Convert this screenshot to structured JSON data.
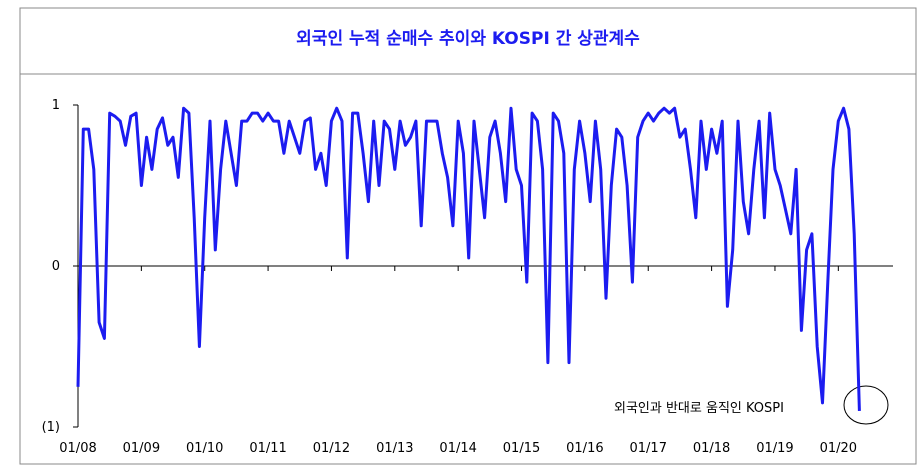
{
  "chart_data": {
    "type": "line",
    "title": "외국인 누적 순매수 추이와 KOSPI 간 상관계수",
    "annotation": "외국인과 반대로 움직인 KOSPI",
    "color": "#1c1cf0",
    "categories": [
      "01/08",
      null,
      null,
      null,
      null,
      null,
      null,
      null,
      null,
      null,
      null,
      null,
      "01/09",
      null,
      null,
      null,
      null,
      null,
      null,
      null,
      null,
      null,
      null,
      null,
      "01/10",
      null,
      null,
      null,
      null,
      null,
      null,
      null,
      null,
      null,
      null,
      null,
      "01/11",
      null,
      null,
      null,
      null,
      null,
      null,
      null,
      null,
      null,
      null,
      null,
      "01/12",
      null,
      null,
      null,
      null,
      null,
      null,
      null,
      null,
      null,
      null,
      null,
      "01/13",
      null,
      null,
      null,
      null,
      null,
      null,
      null,
      null,
      null,
      null,
      null,
      "01/14",
      null,
      null,
      null,
      null,
      null,
      null,
      null,
      null,
      null,
      null,
      null,
      "01/15",
      null,
      null,
      null,
      null,
      null,
      null,
      null,
      null,
      null,
      null,
      null,
      "01/16",
      null,
      null,
      null,
      null,
      null,
      null,
      null,
      null,
      null,
      null,
      null,
      "01/17",
      null,
      null,
      null,
      null,
      null,
      null,
      null,
      null,
      null,
      null,
      null,
      "01/18",
      null,
      null,
      null,
      null,
      null,
      null,
      null,
      null,
      null,
      null,
      null,
      "01/19",
      null,
      null,
      null,
      null,
      null,
      null,
      null,
      null,
      null,
      null,
      null,
      "01/20",
      null,
      null,
      null,
      null
    ],
    "values": [
      -0.75,
      0.85,
      0.85,
      0.6,
      -0.35,
      -0.45,
      0.95,
      0.93,
      0.9,
      0.75,
      0.93,
      0.95,
      0.5,
      0.8,
      0.6,
      0.85,
      0.92,
      0.75,
      0.8,
      0.55,
      0.98,
      0.95,
      0.3,
      -0.5,
      0.3,
      0.9,
      0.1,
      0.6,
      0.9,
      0.7,
      0.5,
      0.9,
      0.9,
      0.95,
      0.95,
      0.9,
      0.95,
      0.9,
      0.9,
      0.7,
      0.9,
      0.8,
      0.7,
      0.9,
      0.92,
      0.6,
      0.7,
      0.5,
      0.9,
      0.98,
      0.9,
      0.05,
      0.95,
      0.95,
      0.7,
      0.4,
      0.9,
      0.5,
      0.9,
      0.85,
      0.6,
      0.9,
      0.75,
      0.8,
      0.9,
      0.25,
      0.9,
      0.9,
      0.9,
      0.7,
      0.55,
      0.25,
      0.9,
      0.7,
      0.05,
      0.9,
      0.6,
      0.3,
      0.8,
      0.9,
      0.7,
      0.4,
      0.98,
      0.6,
      0.5,
      -0.1,
      0.95,
      0.9,
      0.6,
      -0.6,
      0.95,
      0.9,
      0.7,
      -0.6,
      0.6,
      0.9,
      0.7,
      0.4,
      0.9,
      0.6,
      -0.2,
      0.5,
      0.85,
      0.8,
      0.5,
      -0.1,
      0.8,
      0.9,
      0.95,
      0.9,
      0.95,
      0.98,
      0.95,
      0.98,
      0.8,
      0.85,
      0.6,
      0.3,
      0.9,
      0.6,
      0.85,
      0.7,
      0.9,
      -0.25,
      0.1,
      0.9,
      0.4,
      0.2,
      0.6,
      0.9,
      0.3,
      0.95,
      0.6,
      0.5,
      0.35,
      0.2,
      0.6,
      -0.4,
      0.1,
      0.2,
      -0.5,
      -0.85,
      -0.1,
      0.6,
      0.9,
      0.98,
      0.85,
      0.2,
      -0.9
    ],
    "ylim": [
      -1,
      1
    ],
    "yticks": [
      {
        "value": -1,
        "label": "(1)"
      },
      0,
      1
    ]
  }
}
